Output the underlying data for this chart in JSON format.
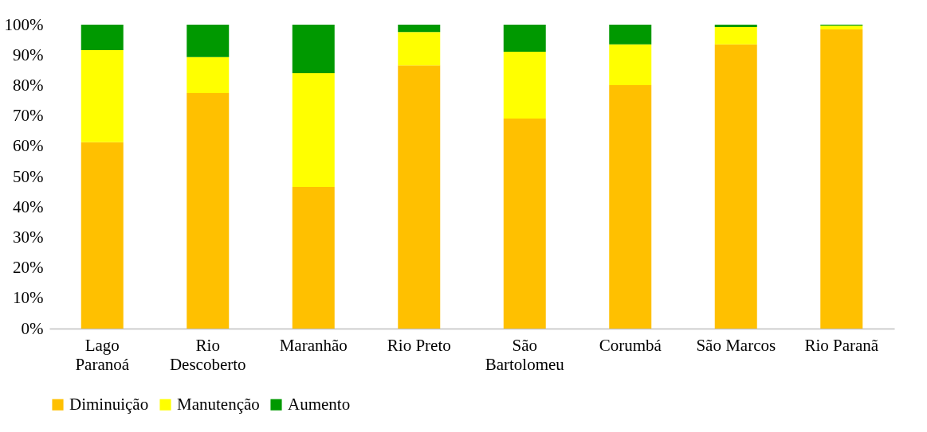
{
  "chart_data": {
    "type": "bar",
    "stacked": true,
    "categories": [
      "Lago Paranoá",
      "Rio Descoberto",
      "Maranhão",
      "Rio Preto",
      "São Bartolomeu",
      "Corumbá",
      "São Marcos",
      "Rio Paranã"
    ],
    "series": [
      {
        "name": "Diminuição",
        "color": "#ffc000",
        "values": [
          61.3,
          77.5,
          46.6,
          86.6,
          69.1,
          80.1,
          93.5,
          98.4
        ]
      },
      {
        "name": "Manutenção",
        "color": "#ffff00",
        "values": [
          30.3,
          11.8,
          37.4,
          11.0,
          22.0,
          13.4,
          5.7,
          1.3
        ]
      },
      {
        "name": "Aumento",
        "color": "#009900",
        "values": [
          8.4,
          10.7,
          16.0,
          2.4,
          8.9,
          6.5,
          0.8,
          0.3
        ]
      }
    ],
    "ylim": [
      0,
      100
    ],
    "yticks": [
      {
        "value": 0,
        "label": "0%"
      },
      {
        "value": 10,
        "label": "10%"
      },
      {
        "value": 20,
        "label": "20%"
      },
      {
        "value": 30,
        "label": "30%"
      },
      {
        "value": 40,
        "label": "40%"
      },
      {
        "value": 50,
        "label": "50%"
      },
      {
        "value": 60,
        "label": "60%"
      },
      {
        "value": 70,
        "label": "70%"
      },
      {
        "value": 80,
        "label": "80%"
      },
      {
        "value": 90,
        "label": "90%"
      },
      {
        "value": 100,
        "label": "100%"
      }
    ],
    "grid": false,
    "legend": "bottom"
  }
}
